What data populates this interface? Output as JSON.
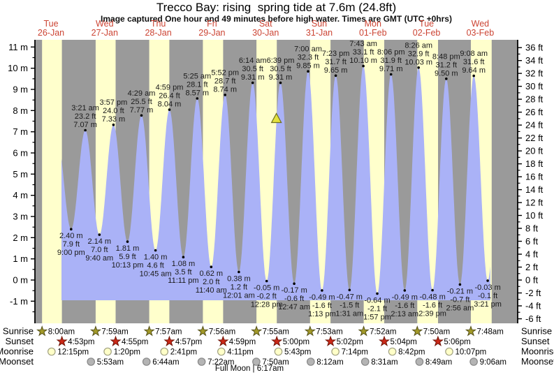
{
  "title": "Trecco Bay: rising  spring tide at 7.6m (24.8ft)",
  "subtitle": "Image captured One hour and 49 minutes before high water. Times are GMT (UTC +0hrs)",
  "side_labels": {
    "sunrise": "Sunrise",
    "sunset": "Sunset",
    "moonrise": "Moonrise",
    "moonset": "Moonset"
  },
  "colors": {
    "day_band": "#ffffcc",
    "night_band": "#9a9a9a",
    "tide_fill": "#aab2f7",
    "day_label": "#cc4433",
    "annotation": "#1a1a1a",
    "sunrise_star_fill": "#a39a28",
    "sunrise_star_edge": "#55511a",
    "sunset_star_fill": "#cc2817",
    "sunset_star_edge": "#6e1408",
    "moonrise_fill": "#ffffc8",
    "moonrise_edge": "#a0a080",
    "moonset_fill": "#b4b4b4",
    "moonset_edge": "#878787",
    "marker_fill": "#e3e23e",
    "marker_edge": "#6e6e1f"
  },
  "chart_data": {
    "type": "area",
    "title": "Trecco Bay: rising spring tide at 7.6m (24.8ft)",
    "y_axis_left": {
      "unit": "m",
      "min": -1,
      "max": 11,
      "step": 1,
      "minor": 0.5
    },
    "y_axis_right": {
      "unit": "ft",
      "min": -6,
      "max": 36,
      "step": 2,
      "minor": 1
    },
    "full_moon": "Full Moon | 6:17am",
    "capture_marker": {
      "day": 5,
      "t": 16.83,
      "m": 7.6
    },
    "curve_start": {
      "day": 1,
      "t": 14.6,
      "m": 6.8
    },
    "curve_end": {
      "day": 9,
      "t": 22.0,
      "m": 9.6
    },
    "curve_clip": {
      "start": {
        "day": 1,
        "t": 16.7
      },
      "end": {
        "day": 9,
        "t": 16.5
      }
    },
    "days": [
      {
        "dow": "Tue",
        "date": "26-Jan",
        "sunrise": {
          "t": 8.0,
          "label": "8:00am"
        },
        "sunset": {
          "t": 16.883,
          "label": "4:53pm"
        },
        "moonrise": {
          "t": 12.25,
          "label": "12:15pm"
        },
        "moonset": null
      },
      {
        "dow": "Wed",
        "date": "27-Jan",
        "sunrise": {
          "t": 7.983,
          "label": "7:59am"
        },
        "sunset": {
          "t": 16.917,
          "label": "4:55pm"
        },
        "moonrise": {
          "t": 13.333,
          "label": "1:20pm"
        },
        "moonset": {
          "t": 5.883,
          "label": "5:53am"
        }
      },
      {
        "dow": "Thu",
        "date": "28-Jan",
        "sunrise": {
          "t": 7.95,
          "label": "7:57am"
        },
        "sunset": {
          "t": 16.95,
          "label": "4:57pm"
        },
        "moonrise": {
          "t": 14.683,
          "label": "2:41pm"
        },
        "moonset": {
          "t": 6.733,
          "label": "6:44am"
        }
      },
      {
        "dow": "Fri",
        "date": "29-Jan",
        "sunrise": {
          "t": 7.933,
          "label": "7:56am"
        },
        "sunset": {
          "t": 16.983,
          "label": "4:59pm"
        },
        "moonrise": {
          "t": 16.183,
          "label": "4:11pm"
        },
        "moonset": {
          "t": 7.367,
          "label": "7:22am"
        }
      },
      {
        "dow": "Sat",
        "date": "30-Jan",
        "sunrise": {
          "t": 7.917,
          "label": "7:55am"
        },
        "sunset": {
          "t": 17.0,
          "label": "5:00pm"
        },
        "moonrise": {
          "t": 17.717,
          "label": "5:43pm"
        },
        "moonset": {
          "t": 7.833,
          "label": "7:50am"
        }
      },
      {
        "dow": "Sun",
        "date": "31-Jan",
        "sunrise": {
          "t": 7.883,
          "label": "7:53am"
        },
        "sunset": {
          "t": 17.033,
          "label": "5:02pm"
        },
        "moonrise": {
          "t": 19.233,
          "label": "7:14pm"
        },
        "moonset": {
          "t": 8.2,
          "label": "8:12am"
        }
      },
      {
        "dow": "Mon",
        "date": "01-Feb",
        "sunrise": {
          "t": 7.867,
          "label": "7:52am"
        },
        "sunset": {
          "t": 17.067,
          "label": "5:04pm"
        },
        "moonrise": {
          "t": 20.7,
          "label": "8:42pm"
        },
        "moonset": {
          "t": 8.517,
          "label": "8:31am"
        }
      },
      {
        "dow": "Tue",
        "date": "02-Feb",
        "sunrise": {
          "t": 7.833,
          "label": "7:50am"
        },
        "sunset": {
          "t": 17.1,
          "label": "5:06pm"
        },
        "moonrise": {
          "t": 22.117,
          "label": "10:07pm"
        },
        "moonset": {
          "t": 8.817,
          "label": "8:49am"
        }
      },
      {
        "dow": "Wed",
        "date": "03-Feb",
        "sunrise": {
          "t": 7.8,
          "label": "7:48am"
        },
        "sunset": null,
        "band_end_t": 17.12,
        "moonrise": null,
        "moonset": {
          "t": 9.1,
          "label": "9:06am"
        }
      }
    ],
    "events": [
      {
        "day": 1,
        "t": 21.0,
        "kind": "low",
        "m": 2.4,
        "m_label": "2.40 m",
        "ft_label": "7.9 ft",
        "time_label": "9:00 pm"
      },
      {
        "day": 2,
        "t": 3.35,
        "kind": "high",
        "m": 7.07,
        "m_label": "7.07 m",
        "ft_label": "23.2 ft",
        "time_label": "3:21 am"
      },
      {
        "day": 2,
        "t": 9.67,
        "kind": "low",
        "m": 2.14,
        "m_label": "2.14 m",
        "ft_label": "7.0 ft",
        "time_label": "9:40 am"
      },
      {
        "day": 2,
        "t": 15.95,
        "kind": "high",
        "m": 7.33,
        "m_label": "7.33 m",
        "ft_label": "24.0 ft",
        "time_label": "3:57 pm"
      },
      {
        "day": 2,
        "t": 22.22,
        "kind": "low",
        "m": 1.81,
        "m_label": "1.81 m",
        "ft_label": "5.9 ft",
        "time_label": "10:13 pm"
      },
      {
        "day": 3,
        "t": 4.48,
        "kind": "high",
        "m": 7.77,
        "m_label": "7.77 m",
        "ft_label": "25.5 ft",
        "time_label": "4:29 am"
      },
      {
        "day": 3,
        "t": 10.75,
        "kind": "low",
        "m": 1.4,
        "m_label": "1.40 m",
        "ft_label": "4.6 ft",
        "time_label": "10:45 am"
      },
      {
        "day": 3,
        "t": 16.98,
        "kind": "high",
        "m": 8.04,
        "m_label": "8.04 m",
        "ft_label": "26.4 ft",
        "time_label": "4:59 pm"
      },
      {
        "day": 3,
        "t": 23.18,
        "kind": "low",
        "m": 1.08,
        "m_label": "1.08 m",
        "ft_label": "3.5 ft",
        "time_label": "11:11 pm"
      },
      {
        "day": 4,
        "t": 5.42,
        "kind": "high",
        "m": 8.57,
        "m_label": "8.57 m",
        "ft_label": "28.1 ft",
        "time_label": "5:25 am"
      },
      {
        "day": 4,
        "t": 11.67,
        "kind": "low",
        "m": 0.62,
        "m_label": "0.62 m",
        "ft_label": "2.0 ft",
        "time_label": "11:40 am"
      },
      {
        "day": 4,
        "t": 17.87,
        "kind": "high",
        "m": 8.74,
        "m_label": "8.74 m",
        "ft_label": "28.7 ft",
        "time_label": "5:52 pm"
      },
      {
        "day": 5,
        "t": 0.02,
        "kind": "low",
        "m": 0.38,
        "m_label": "0.38 m",
        "ft_label": "1.2 ft",
        "time_label": "12:01 am"
      },
      {
        "day": 5,
        "t": 6.23,
        "kind": "high",
        "m": 9.31,
        "m_label": "9.31 m",
        "ft_label": "30.5 ft",
        "time_label": "6:14 am"
      },
      {
        "day": 5,
        "t": 12.47,
        "kind": "low",
        "m": -0.05,
        "m_label": "-0.05 m",
        "ft_label": "-0.2 ft",
        "time_label": "12:28 pm"
      },
      {
        "day": 5,
        "t": 18.65,
        "kind": "high",
        "m": 9.31,
        "m_label": "9.31 m",
        "ft_label": "30.5 ft",
        "time_label": "6:39 pm"
      },
      {
        "day": 6,
        "t": 0.78,
        "kind": "low",
        "m": -0.17,
        "m_label": "-0.17 m",
        "ft_label": "-0.6 ft",
        "time_label": "12:47 am"
      },
      {
        "day": 6,
        "t": 7.0,
        "kind": "high",
        "m": 9.85,
        "m_label": "9.85 m",
        "ft_label": "32.3 ft",
        "time_label": "7:00 am"
      },
      {
        "day": 6,
        "t": 13.22,
        "kind": "low",
        "m": -0.49,
        "m_label": "-0.49 m",
        "ft_label": "-1.6 ft",
        "time_label": "1:13 pm"
      },
      {
        "day": 6,
        "t": 19.38,
        "kind": "high",
        "m": 9.65,
        "m_label": "9.65 m",
        "ft_label": "31.7 ft",
        "time_label": "7:23 pm"
      },
      {
        "day": 7,
        "t": 1.52,
        "kind": "low",
        "m": -0.47,
        "m_label": "-0.47 m",
        "ft_label": "-1.5 ft",
        "time_label": "1:31 am"
      },
      {
        "day": 7,
        "t": 7.72,
        "kind": "high",
        "m": 10.1,
        "m_label": "10.10 m",
        "ft_label": "33.1 ft",
        "time_label": "7:43 am"
      },
      {
        "day": 7,
        "t": 13.95,
        "kind": "low",
        "m": -0.64,
        "m_label": "-0.64 m",
        "ft_label": "-2.1 ft",
        "time_label": "1:57 pm"
      },
      {
        "day": 7,
        "t": 20.1,
        "kind": "high",
        "m": 9.71,
        "m_label": "9.71 m",
        "ft_label": "31.9 ft",
        "time_label": "8:06 pm"
      },
      {
        "day": 8,
        "t": 2.22,
        "kind": "low",
        "m": -0.49,
        "m_label": "-0.49 m",
        "ft_label": "-1.6 ft",
        "time_label": "2:13 am"
      },
      {
        "day": 8,
        "t": 8.43,
        "kind": "high",
        "m": 10.03,
        "m_label": "10.03 m",
        "ft_label": "32.9 ft",
        "time_label": "8:26 am"
      },
      {
        "day": 8,
        "t": 14.65,
        "kind": "low",
        "m": -0.48,
        "m_label": "-0.48 m",
        "ft_label": "-1.6 ft",
        "time_label": "2:39 pm"
      },
      {
        "day": 8,
        "t": 20.8,
        "kind": "high",
        "m": 9.5,
        "m_label": "9.50 m",
        "ft_label": "31.2 ft",
        "time_label": "8:48 pm"
      },
      {
        "day": 9,
        "t": 2.93,
        "kind": "low",
        "m": -0.21,
        "m_label": "-0.21 m",
        "ft_label": "-0.7 ft",
        "time_label": "2:56 am"
      },
      {
        "day": 9,
        "t": 9.13,
        "kind": "high",
        "m": 9.64,
        "m_label": "9.64 m",
        "ft_label": "31.6 ft",
        "time_label": "9:08 am"
      },
      {
        "day": 9,
        "t": 15.35,
        "kind": "low",
        "m": -0.03,
        "m_label": "-0.03 m",
        "ft_label": "-0.1 ft",
        "time_label": "3:21 pm"
      }
    ]
  }
}
